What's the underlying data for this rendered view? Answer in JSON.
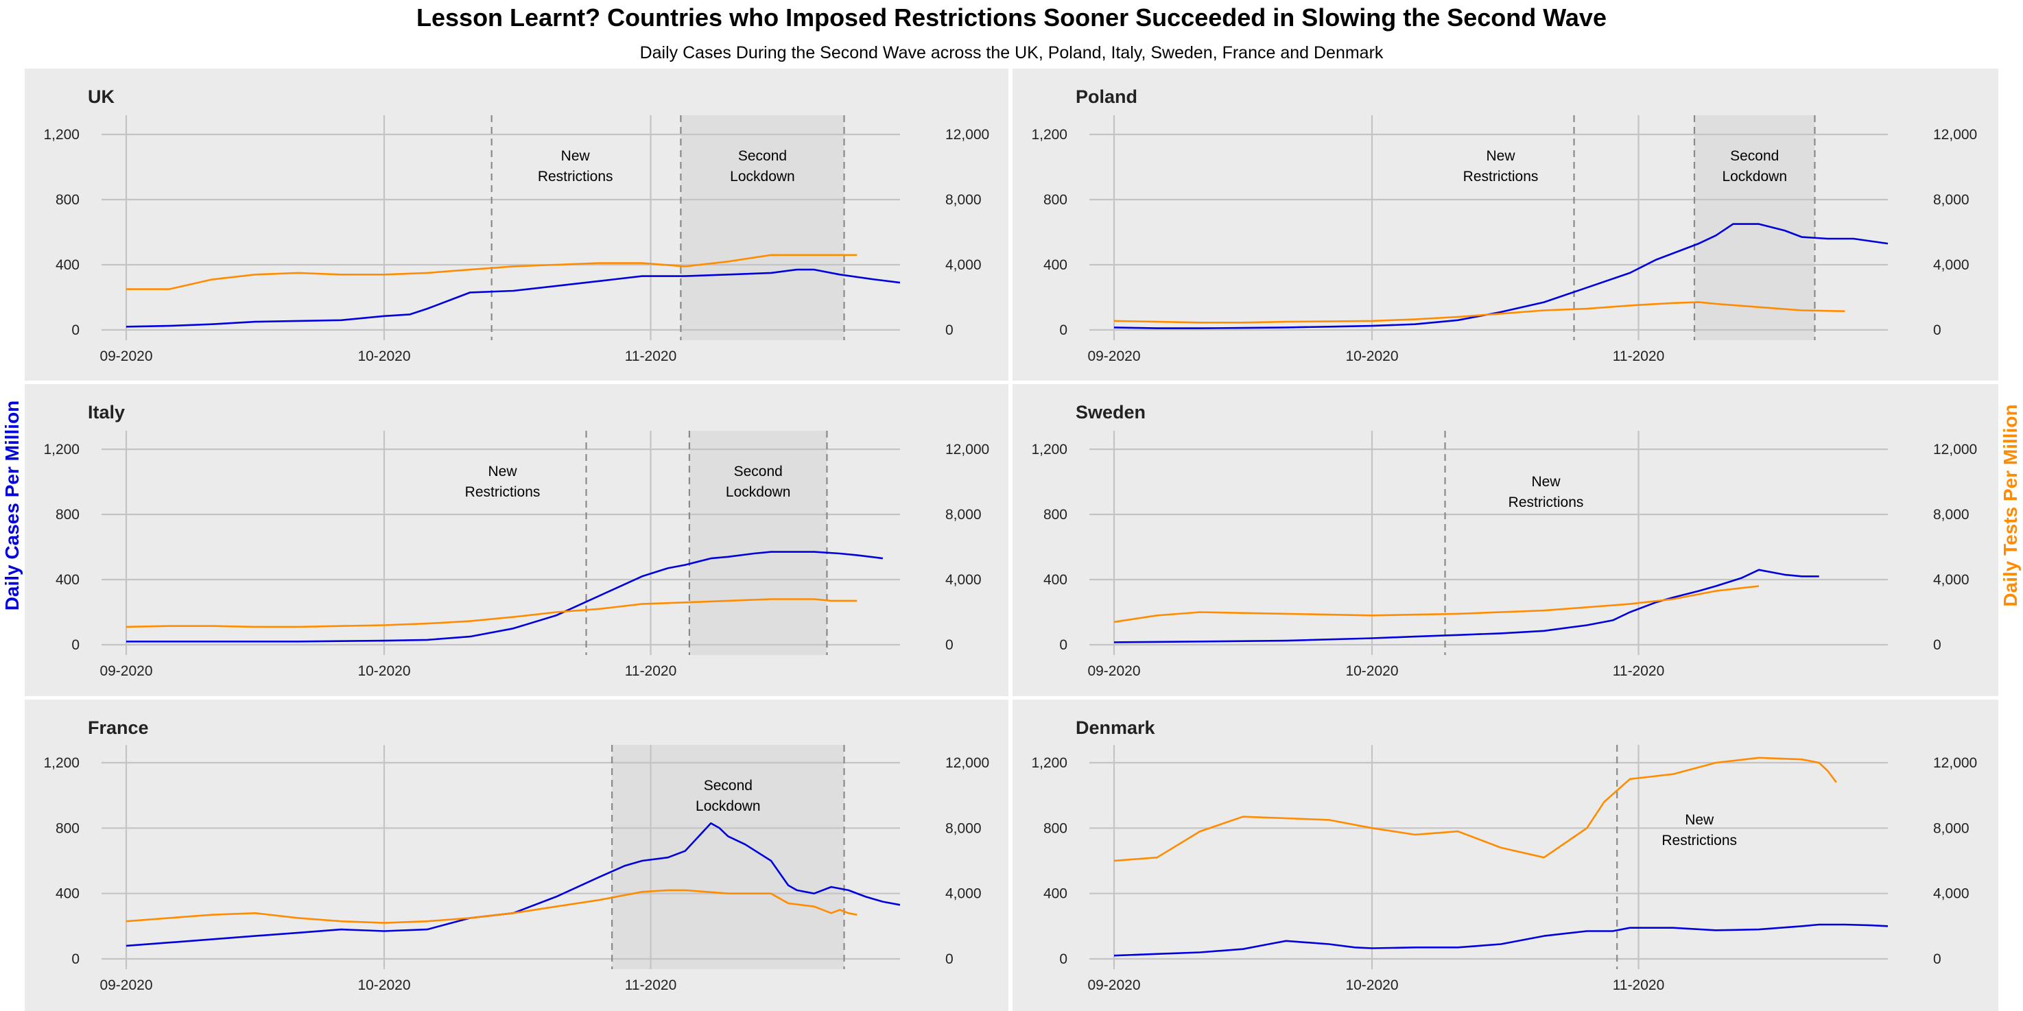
{
  "title": "Lesson Learnt? Countries who Imposed Restrictions Sooner Succeeded in Slowing the Second Wave",
  "subtitle": "Daily Cases During the Second Wave across the UK, Poland, Italy, Sweden, France and Denmark",
  "y_left_label": "Daily Cases Per Million",
  "y_right_label": "Daily Tests Per Million",
  "colors": {
    "cases": "#0000dd",
    "tests": "#ff8c00",
    "panel": "#ebebeb",
    "lockdown_shade": "#dedede"
  },
  "chart_data": [
    {
      "type": "line",
      "title": "UK",
      "xlim": [
        0,
        90
      ],
      "x_ticks": [
        0,
        30,
        61
      ],
      "x_tick_labels": [
        "09-2020",
        "10-2020",
        "11-2020"
      ],
      "ylim": [
        0,
        1200
      ],
      "y_ticks": [
        0,
        400,
        800,
        1200
      ],
      "y_tick_labels": [
        "0",
        "400",
        "800",
        "1,200"
      ],
      "y2_ticks": [
        0,
        4000,
        8000,
        12000
      ],
      "y2_tick_labels": [
        "0",
        "4,000",
        "8,000",
        "12,000"
      ],
      "new_restrictions": {
        "x": 42.5,
        "label": [
          "New",
          "Restrictions"
        ]
      },
      "lockdown": {
        "x_start": 64.5,
        "x_end": 83.5,
        "label": [
          "Second",
          "Lockdown"
        ]
      },
      "series": [
        {
          "name": "cases",
          "axis": "left",
          "x": [
            0,
            5,
            10,
            15,
            20,
            25,
            30,
            33,
            35,
            38,
            40,
            45,
            50,
            55,
            60,
            65,
            70,
            75,
            78,
            80,
            83,
            87,
            90
          ],
          "y": [
            20,
            25,
            35,
            50,
            55,
            60,
            85,
            95,
            130,
            190,
            230,
            240,
            270,
            300,
            330,
            330,
            340,
            350,
            370,
            370,
            340,
            310,
            290
          ]
        },
        {
          "name": "tests",
          "axis": "right",
          "x": [
            0,
            5,
            10,
            15,
            20,
            25,
            30,
            35,
            40,
            45,
            50,
            55,
            60,
            65,
            70,
            75,
            78,
            80,
            83,
            85
          ],
          "y": [
            2500,
            2500,
            3100,
            3400,
            3500,
            3400,
            3400,
            3500,
            3700,
            3900,
            4000,
            4100,
            4100,
            3900,
            4200,
            4600,
            4600,
            4600,
            4600,
            4600
          ]
        }
      ]
    },
    {
      "type": "line",
      "title": "Poland",
      "xlim": [
        0,
        90
      ],
      "x_ticks": [
        0,
        30,
        61
      ],
      "x_tick_labels": [
        "09-2020",
        "10-2020",
        "11-2020"
      ],
      "ylim": [
        0,
        1200
      ],
      "y_ticks": [
        0,
        400,
        800,
        1200
      ],
      "y_tick_labels": [
        "0",
        "400",
        "800",
        "1,200"
      ],
      "y2_ticks": [
        0,
        4000,
        8000,
        12000
      ],
      "y2_tick_labels": [
        "0",
        "4,000",
        "8,000",
        "12,000"
      ],
      "new_restrictions": {
        "x": 53.5,
        "label": [
          "New",
          "Restrictions"
        ]
      },
      "lockdown": {
        "x_start": 67.5,
        "x_end": 81.5,
        "label": [
          "Second",
          "Lockdown"
        ]
      },
      "series": [
        {
          "name": "cases",
          "axis": "left",
          "x": [
            0,
            5,
            10,
            15,
            20,
            25,
            30,
            35,
            40,
            45,
            50,
            55,
            60,
            63,
            65,
            68,
            70,
            72,
            75,
            78,
            80,
            83,
            86,
            90
          ],
          "y": [
            15,
            10,
            10,
            12,
            15,
            20,
            25,
            35,
            60,
            110,
            170,
            260,
            350,
            430,
            470,
            530,
            580,
            650,
            650,
            610,
            570,
            560,
            560,
            530
          ]
        },
        {
          "name": "tests",
          "axis": "right",
          "x": [
            0,
            5,
            10,
            15,
            20,
            25,
            30,
            35,
            40,
            45,
            50,
            55,
            60,
            65,
            68,
            70,
            75,
            80,
            85
          ],
          "y": [
            550,
            500,
            450,
            450,
            500,
            520,
            550,
            650,
            800,
            1000,
            1200,
            1300,
            1500,
            1650,
            1700,
            1600,
            1400,
            1200,
            1150
          ]
        }
      ]
    },
    {
      "type": "line",
      "title": "Italy",
      "xlim": [
        0,
        90
      ],
      "x_ticks": [
        0,
        30,
        61
      ],
      "x_tick_labels": [
        "09-2020",
        "10-2020",
        "11-2020"
      ],
      "ylim": [
        0,
        1200
      ],
      "y_ticks": [
        0,
        400,
        800,
        1200
      ],
      "y_tick_labels": [
        "0",
        "400",
        "800",
        "1,200"
      ],
      "y2_ticks": [
        0,
        4000,
        8000,
        12000
      ],
      "y2_tick_labels": [
        "0",
        "4,000",
        "8,000",
        "12,000"
      ],
      "new_restrictions": {
        "x": 53.5,
        "label": [
          "New",
          "Restrictions"
        ]
      },
      "lockdown": {
        "x_start": 65.5,
        "x_end": 81.5,
        "label": [
          "Second",
          "Lockdown"
        ]
      },
      "series": [
        {
          "name": "cases",
          "axis": "left",
          "x": [
            0,
            10,
            20,
            30,
            35,
            40,
            45,
            50,
            55,
            60,
            63,
            65,
            68,
            70,
            73,
            75,
            78,
            80,
            83,
            85,
            88
          ],
          "y": [
            20,
            20,
            20,
            25,
            30,
            50,
            100,
            180,
            300,
            420,
            470,
            490,
            530,
            540,
            560,
            570,
            570,
            570,
            560,
            550,
            530
          ]
        },
        {
          "name": "tests",
          "axis": "right",
          "x": [
            0,
            5,
            10,
            15,
            20,
            25,
            30,
            35,
            40,
            45,
            50,
            55,
            60,
            65,
            70,
            75,
            80,
            82,
            85
          ],
          "y": [
            1100,
            1150,
            1150,
            1100,
            1100,
            1150,
            1200,
            1300,
            1450,
            1700,
            2000,
            2200,
            2500,
            2600,
            2700,
            2800,
            2800,
            2700,
            2700
          ]
        }
      ]
    },
    {
      "type": "line",
      "title": "Sweden",
      "xlim": [
        0,
        90
      ],
      "x_ticks": [
        0,
        30,
        61
      ],
      "x_tick_labels": [
        "09-2020",
        "10-2020",
        "11-2020"
      ],
      "ylim": [
        0,
        1200
      ],
      "y_ticks": [
        0,
        400,
        800,
        1200
      ],
      "y_tick_labels": [
        "0",
        "400",
        "800",
        "1,200"
      ],
      "y2_ticks": [
        0,
        4000,
        8000,
        12000
      ],
      "y2_tick_labels": [
        "0",
        "4,000",
        "8,000",
        "12,000"
      ],
      "new_restrictions": {
        "x": 38.5,
        "label": [
          "New",
          "Restrictions"
        ]
      },
      "lockdown": null,
      "series": [
        {
          "name": "cases",
          "axis": "left",
          "x": [
            0,
            10,
            20,
            30,
            35,
            40,
            45,
            50,
            55,
            58,
            60,
            63,
            65,
            68,
            70,
            73,
            75,
            78,
            80,
            82
          ],
          "y": [
            15,
            20,
            25,
            40,
            50,
            60,
            70,
            85,
            120,
            150,
            200,
            260,
            290,
            330,
            360,
            410,
            460,
            430,
            420,
            420
          ]
        },
        {
          "name": "tests",
          "axis": "right",
          "x": [
            0,
            5,
            10,
            20,
            30,
            40,
            50,
            60,
            65,
            70,
            75
          ],
          "y": [
            1400,
            1800,
            2000,
            1900,
            1800,
            1900,
            2100,
            2500,
            2800,
            3300,
            3600
          ]
        }
      ]
    },
    {
      "type": "line",
      "title": "France",
      "xlim": [
        0,
        90
      ],
      "x_ticks": [
        0,
        30,
        61
      ],
      "x_tick_labels": [
        "09-2020",
        "10-2020",
        "11-2020"
      ],
      "ylim": [
        0,
        1200
      ],
      "y_ticks": [
        0,
        400,
        800,
        1200
      ],
      "y_tick_labels": [
        "0",
        "400",
        "800",
        "1,200"
      ],
      "y2_ticks": [
        0,
        4000,
        8000,
        12000
      ],
      "y2_tick_labels": [
        "0",
        "4,000",
        "8,000",
        "12,000"
      ],
      "new_restrictions": null,
      "lockdown": {
        "x_start": 56.5,
        "x_end": 83.5,
        "label": [
          "Second",
          "Lockdown"
        ]
      },
      "series": [
        {
          "name": "cases",
          "axis": "left",
          "x": [
            0,
            5,
            10,
            15,
            20,
            25,
            30,
            35,
            40,
            45,
            50,
            55,
            58,
            60,
            63,
            65,
            68,
            69,
            70,
            72,
            75,
            77,
            78,
            80,
            82,
            84,
            86,
            88,
            90
          ],
          "y": [
            80,
            100,
            120,
            140,
            160,
            180,
            170,
            180,
            250,
            280,
            380,
            500,
            570,
            600,
            620,
            660,
            830,
            800,
            750,
            700,
            600,
            450,
            420,
            400,
            440,
            420,
            380,
            350,
            330
          ]
        },
        {
          "name": "tests",
          "axis": "right",
          "x": [
            0,
            5,
            10,
            15,
            20,
            25,
            30,
            35,
            40,
            45,
            50,
            55,
            60,
            63,
            65,
            70,
            75,
            77,
            80,
            82,
            83,
            84,
            85
          ],
          "y": [
            2300,
            2500,
            2700,
            2800,
            2500,
            2300,
            2200,
            2300,
            2500,
            2800,
            3200,
            3600,
            4100,
            4200,
            4200,
            4000,
            4000,
            3400,
            3200,
            2800,
            3000,
            2800,
            2700
          ]
        }
      ]
    },
    {
      "type": "line",
      "title": "Denmark",
      "xlim": [
        0,
        90
      ],
      "x_ticks": [
        0,
        30,
        61
      ],
      "x_tick_labels": [
        "09-2020",
        "10-2020",
        "11-2020"
      ],
      "ylim": [
        0,
        1200
      ],
      "y_ticks": [
        0,
        400,
        800,
        1200
      ],
      "y_tick_labels": [
        "0",
        "400",
        "800",
        "1,200"
      ],
      "y2_ticks": [
        0,
        4000,
        8000,
        12000
      ],
      "y2_tick_labels": [
        "0",
        "4,000",
        "8,000",
        "12,000"
      ],
      "new_restrictions": {
        "x": 58.5,
        "label": [
          "New",
          "Restrictions"
        ]
      },
      "lockdown": null,
      "series": [
        {
          "name": "cases",
          "axis": "left",
          "x": [
            0,
            5,
            10,
            15,
            18,
            20,
            25,
            28,
            30,
            35,
            40,
            45,
            50,
            55,
            58,
            60,
            65,
            70,
            75,
            80,
            82,
            85,
            88,
            90
          ],
          "y": [
            20,
            30,
            40,
            60,
            90,
            110,
            90,
            70,
            65,
            70,
            70,
            90,
            140,
            170,
            170,
            190,
            190,
            175,
            180,
            200,
            210,
            210,
            205,
            200
          ]
        },
        {
          "name": "tests",
          "axis": "right",
          "x": [
            0,
            5,
            10,
            15,
            20,
            25,
            30,
            35,
            40,
            45,
            50,
            55,
            57,
            60,
            65,
            70,
            75,
            80,
            82,
            83,
            84
          ],
          "y": [
            6000,
            6200,
            7800,
            8700,
            8600,
            8500,
            8000,
            7600,
            7800,
            6800,
            6200,
            8000,
            9600,
            11000,
            11300,
            12000,
            12300,
            12200,
            12000,
            11500,
            10800
          ]
        }
      ]
    }
  ]
}
